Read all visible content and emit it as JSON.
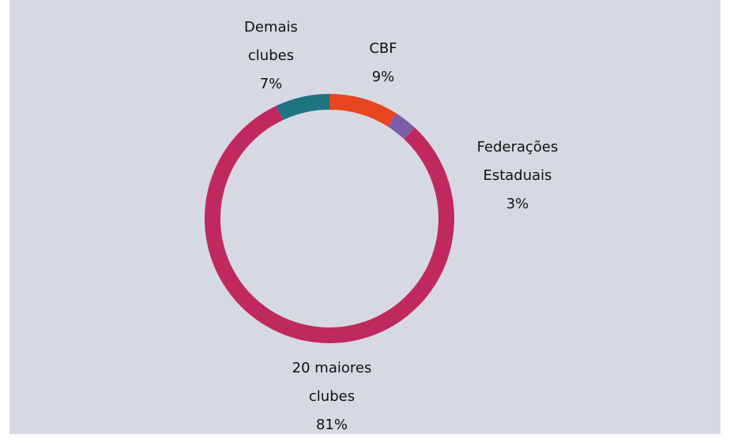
{
  "chart_data": {
    "type": "donut",
    "categories": [
      "CBF",
      "Federações Estaduais",
      "20 maiores clubes",
      "Demais clubes"
    ],
    "values": [
      9,
      3,
      81,
      7
    ],
    "value_labels": [
      "9%",
      "3%",
      "81%",
      "7%"
    ],
    "colors": [
      "#e8461e",
      "#7b5ea7",
      "#c0295e",
      "#1f7482"
    ]
  }
}
